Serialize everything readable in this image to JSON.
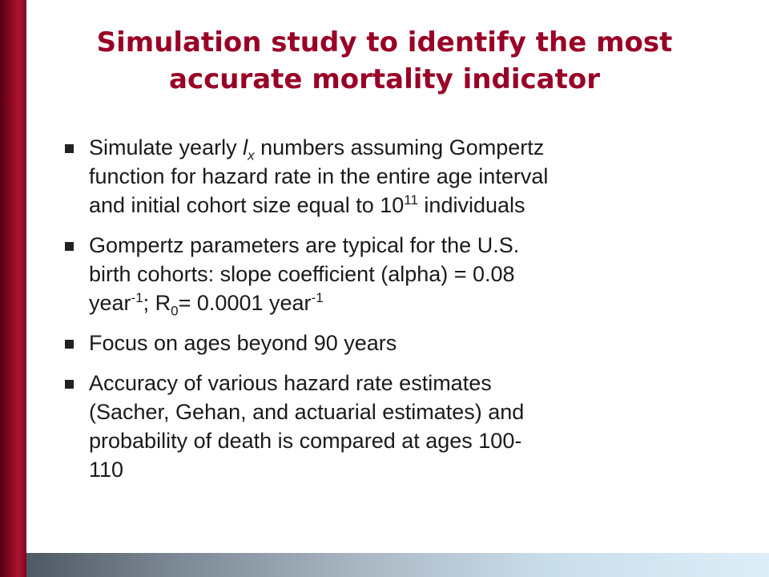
{
  "slide": {
    "title_line1": "Simulation study to identify the most",
    "title_line2": "accurate mortality indicator",
    "bullets": [
      {
        "line1_a": "Simulate yearly ",
        "line1_var": "l",
        "line1_sub": "x",
        "line1_b": " numbers assuming Gompertz",
        "line2": "function for hazard rate in the entire age interval",
        "line3_a": "and initial cohort size equal to 10",
        "line3_sup": "11",
        "line3_b": " individuals"
      },
      {
        "line1": "Gompertz parameters are typical for the U.S.",
        "line2": "birth cohorts: slope coefficient (alpha) = 0.08",
        "line3_a": "year",
        "line3_sup1": "-1",
        "line3_b": "; R",
        "line3_sub": "0",
        "line3_c": "= 0.0001 year",
        "line3_sup2": "-1"
      },
      {
        "line1": "Focus on ages beyond 90 years"
      },
      {
        "line1": "Accuracy of various hazard rate estimates",
        "line2": "(Sacher, Gehan, and actuarial estimates) and",
        "line3": "probability of death is compared at ages 100-",
        "line4": "110"
      }
    ]
  }
}
